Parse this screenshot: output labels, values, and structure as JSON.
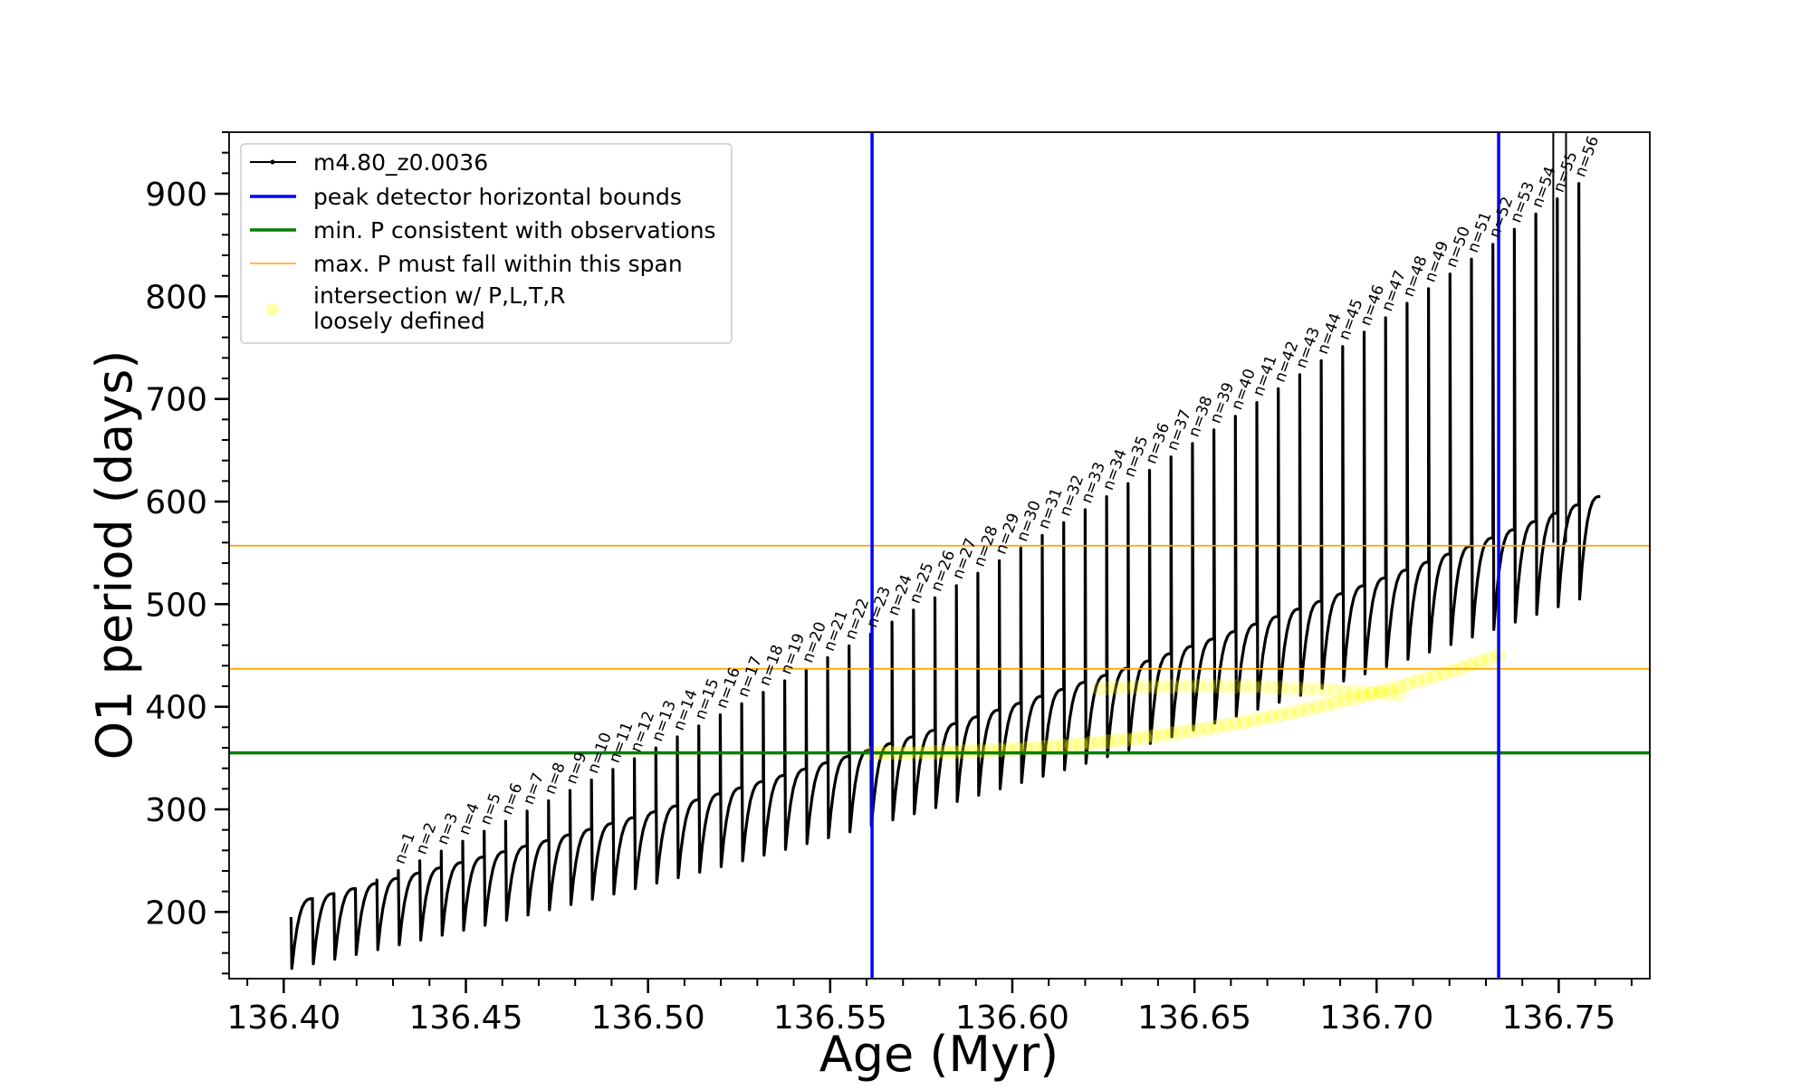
{
  "chart_data": {
    "type": "line",
    "xlabel": "Age (Myr)",
    "ylabel": "O1 period (days)",
    "xlim": [
      136.385,
      136.775
    ],
    "ylim": [
      135,
      960
    ],
    "xticks": [
      136.4,
      136.45,
      136.5,
      136.55,
      136.6,
      136.65,
      136.7,
      136.75
    ],
    "xtick_labels": [
      "136.40",
      "136.45",
      "136.50",
      "136.55",
      "136.60",
      "136.65",
      "136.70",
      "136.75"
    ],
    "yticks": [
      200,
      300,
      400,
      500,
      600,
      700,
      800,
      900
    ],
    "ytick_labels": [
      "200",
      "300",
      "400",
      "500",
      "600",
      "700",
      "800",
      "900"
    ],
    "grid": false,
    "legend_position": "top-left",
    "colors": {
      "track": "#000000",
      "bounds": "#0000ff",
      "min_period": "#008000",
      "max_period_span": "#ffa500",
      "intersection": "#ffff00"
    },
    "legend": [
      {
        "label": "m4.80_z0.0036",
        "kind": "line-marker",
        "color": "#000000"
      },
      {
        "label": "peak detector horizontal bounds",
        "kind": "line",
        "color": "#0000ff"
      },
      {
        "label": "min. P consistent with observations",
        "kind": "line",
        "color": "#008000"
      },
      {
        "label": "max. P must fall within this span",
        "kind": "line-thin",
        "color": "#ffa500"
      },
      {
        "label": "intersection w/ P,L,T,R",
        "label2": "loosely defined",
        "kind": "dot",
        "color": "#ffff00"
      }
    ],
    "reference_lines": {
      "vertical_bounds": [
        136.5615,
        136.7335
      ],
      "min_period": 355,
      "max_period_span": [
        437,
        557
      ]
    },
    "pulses": {
      "age_start": 136.402,
      "age_end": 136.7555,
      "first_peak": 195,
      "last_peak": 910,
      "first_min": 145,
      "last_min": 505,
      "first_plateau": 213,
      "last_plateau": 605,
      "n_start_index": 5,
      "labels": [
        "n=1",
        "n=2",
        "n=3",
        "n=4",
        "n=5",
        "n=6",
        "n=7",
        "n=8",
        "n=9",
        "n=10",
        "n=11",
        "n=12",
        "n=13",
        "n=14",
        "n=15",
        "n=16",
        "n=17",
        "n=18",
        "n=19",
        "n=20",
        "n=21",
        "n=22",
        "n=23",
        "n=24",
        "n=25",
        "n=26",
        "n=27",
        "n=28",
        "n=29",
        "n=30",
        "n=31",
        "n=32",
        "n=33",
        "n=34",
        "n=35",
        "n=36",
        "n=37",
        "n=38",
        "n=39",
        "n=40",
        "n=41",
        "n=42",
        "n=43",
        "n=44",
        "n=45",
        "n=46",
        "n=47",
        "n=48",
        "n=49",
        "n=50",
        "n=51",
        "n=52",
        "n=53",
        "n=54",
        "n=55",
        "n=56"
      ]
    },
    "intersection_points": {
      "age_range": [
        136.5615,
        136.7335
      ],
      "period_range": [
        355,
        450
      ]
    }
  }
}
